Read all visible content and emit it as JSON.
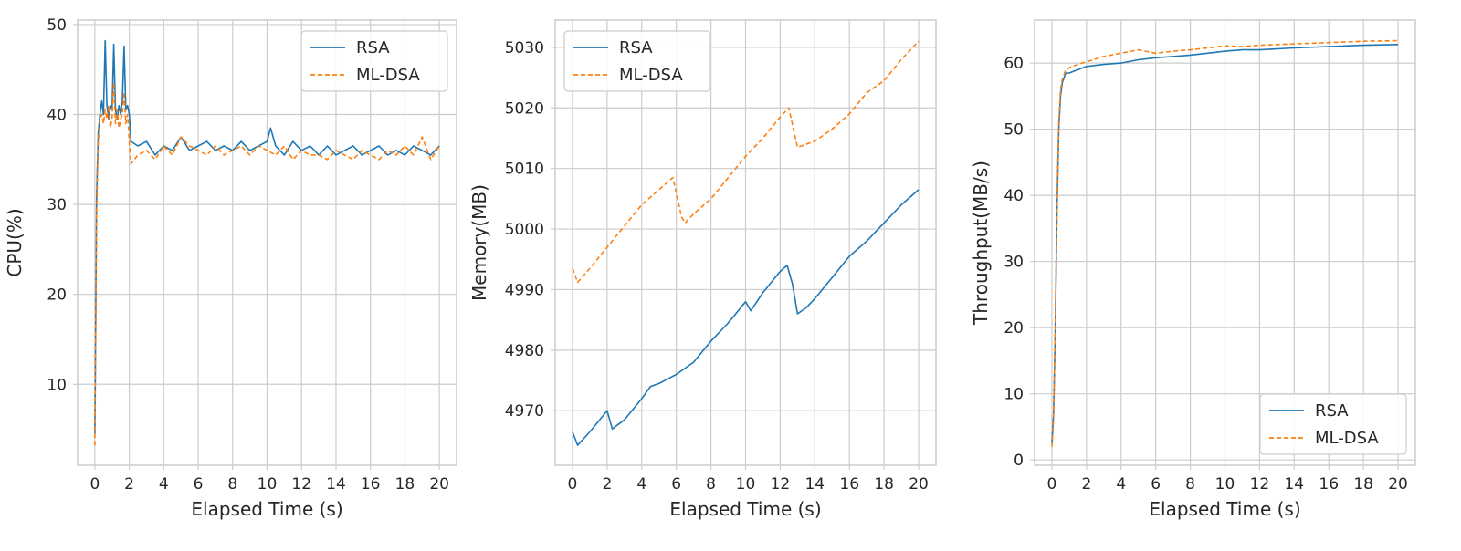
{
  "colors": {
    "rsa": "#1f77b4",
    "mldsa": "#ff7f0e",
    "grid": "#cccccc",
    "background": "#ffffff"
  },
  "chart_data": [
    {
      "type": "line",
      "xlabel": "Elapsed Time (s)",
      "ylabel": "CPU(%)",
      "xlim": [
        -1,
        21
      ],
      "ylim": [
        1,
        50.5
      ],
      "xticks": [
        0,
        2,
        4,
        6,
        8,
        10,
        12,
        14,
        16,
        18,
        20
      ],
      "yticks": [
        10,
        20,
        30,
        40,
        50
      ],
      "grid": true,
      "legend": "top-right",
      "series": [
        {
          "name": "RSA",
          "style": "solid",
          "x": [
            0,
            0.1,
            0.2,
            0.3,
            0.4,
            0.5,
            0.6,
            0.7,
            0.8,
            0.9,
            1.0,
            1.1,
            1.2,
            1.3,
            1.4,
            1.5,
            1.6,
            1.7,
            1.8,
            1.9,
            2.0,
            2.1,
            2.5,
            3.0,
            3.5,
            4.0,
            4.5,
            5.0,
            5.5,
            6.0,
            6.5,
            7.0,
            7.5,
            8.0,
            8.5,
            9.0,
            9.5,
            10.0,
            10.2,
            10.5,
            11.0,
            11.5,
            12.0,
            12.5,
            13.0,
            13.5,
            14.0,
            14.5,
            15.0,
            15.5,
            16.0,
            16.5,
            17.0,
            17.5,
            18.0,
            18.5,
            19.0,
            19.5,
            20.0
          ],
          "y": [
            4.5,
            31,
            38,
            40,
            41.5,
            40,
            48.2,
            41,
            39.5,
            41,
            40.5,
            47.8,
            40.5,
            39.5,
            41,
            40,
            41.5,
            47.6,
            40.5,
            41,
            40,
            37,
            36.5,
            37,
            35.5,
            36.5,
            36,
            37.5,
            36,
            36.5,
            37,
            36,
            36.5,
            36,
            37,
            36,
            36.5,
            37,
            38.5,
            36.5,
            35.5,
            37,
            36,
            36.5,
            35.5,
            36.5,
            35.5,
            36,
            36.5,
            35.5,
            36,
            36.5,
            35.5,
            36,
            35.5,
            36.5,
            36,
            35.5,
            36.5
          ]
        },
        {
          "name": "ML-DSA",
          "style": "dashed",
          "x": [
            0,
            0.1,
            0.2,
            0.3,
            0.4,
            0.5,
            0.6,
            0.7,
            0.8,
            0.9,
            1.0,
            1.1,
            1.2,
            1.3,
            1.4,
            1.5,
            1.6,
            1.7,
            1.8,
            1.9,
            2.0,
            2.1,
            2.5,
            3.0,
            3.5,
            4.0,
            4.5,
            5.0,
            5.5,
            6.0,
            6.5,
            7.0,
            7.5,
            8.0,
            8.5,
            9.0,
            9.5,
            10.0,
            10.5,
            11.0,
            11.5,
            12.0,
            12.5,
            13.0,
            13.5,
            14.0,
            14.5,
            15.0,
            15.5,
            16.0,
            16.5,
            17.0,
            17.5,
            18.0,
            18.5,
            19.0,
            19.5,
            20.0
          ],
          "y": [
            3.2,
            29,
            37,
            39.5,
            40,
            39,
            40.5,
            39.5,
            41,
            38.5,
            39.5,
            43.5,
            39,
            40.5,
            38.5,
            39.5,
            40,
            42.5,
            39,
            40,
            37,
            34.5,
            35.5,
            36,
            35,
            36.5,
            35.5,
            37.5,
            36.5,
            36,
            35.5,
            36.5,
            35.5,
            36,
            36.5,
            35.5,
            36.5,
            36,
            35.5,
            36.5,
            35,
            36,
            35.5,
            35.5,
            35,
            36,
            35.5,
            35,
            36,
            35.5,
            35,
            36,
            35.5,
            36.5,
            35.5,
            37.5,
            35,
            36.5
          ]
        }
      ]
    },
    {
      "type": "line",
      "xlabel": "Elapsed Time (s)",
      "ylabel": "Memory(MB)",
      "xlim": [
        -1,
        21
      ],
      "ylim": [
        4961,
        5034.5
      ],
      "xticks": [
        0,
        2,
        4,
        6,
        8,
        10,
        12,
        14,
        16,
        18,
        20
      ],
      "yticks": [
        4970,
        4980,
        4990,
        5000,
        5010,
        5020,
        5030
      ],
      "grid": true,
      "legend": "top-left",
      "series": [
        {
          "name": "RSA",
          "style": "solid",
          "x": [
            0,
            0.3,
            1.0,
            2.0,
            2.3,
            3.0,
            4.0,
            4.5,
            5.0,
            6.0,
            7.0,
            8.0,
            9.0,
            10.0,
            10.3,
            11.0,
            12.0,
            12.4,
            12.7,
            13.0,
            13.5,
            14.0,
            15.0,
            16.0,
            17.0,
            18.0,
            19.0,
            20.0
          ],
          "y": [
            4966.5,
            4964.3,
            4966.5,
            4970,
            4967,
            4968.5,
            4972,
            4974,
            4974.5,
            4976,
            4978,
            4981.5,
            4984.5,
            4988,
            4986.5,
            4989.5,
            4993,
            4994,
            4991,
            4986,
            4987,
            4988.5,
            4992,
            4995.5,
            4998,
            5001,
            5004,
            5006.5
          ]
        },
        {
          "name": "ML-DSA",
          "style": "dashed",
          "x": [
            0,
            0.3,
            1.0,
            2.0,
            3.0,
            4.0,
            5.0,
            5.8,
            6.3,
            6.5,
            7.0,
            8.0,
            9.0,
            10.0,
            11.0,
            12.0,
            12.5,
            12.8,
            13.0,
            13.5,
            14.0,
            15.0,
            16.0,
            17.0,
            18.0,
            19.0,
            20.0
          ],
          "y": [
            4993.5,
            4991.2,
            4993.5,
            4997,
            5000.5,
            5004,
            5006.5,
            5008.5,
            5002,
            5001,
            5002.5,
            5005,
            5008.5,
            5012,
            5015,
            5018.5,
            5020,
            5016,
            5013.5,
            5014,
            5014.5,
            5016.5,
            5019,
            5022.5,
            5024.5,
            5028,
            5031
          ]
        }
      ]
    },
    {
      "type": "line",
      "xlabel": "Elapsed Time (s)",
      "ylabel": "Throughput(MB/s)",
      "xlim": [
        -1,
        21
      ],
      "ylim": [
        -0.8,
        66.5
      ],
      "xticks": [
        0,
        2,
        4,
        6,
        8,
        10,
        12,
        14,
        16,
        18,
        20
      ],
      "yticks": [
        0,
        10,
        20,
        30,
        40,
        50,
        60
      ],
      "grid": true,
      "legend": "bottom-right",
      "series": [
        {
          "name": "RSA",
          "style": "solid",
          "x": [
            0,
            0.1,
            0.2,
            0.3,
            0.4,
            0.5,
            0.6,
            0.8,
            1.0,
            1.5,
            2.0,
            3.0,
            4.0,
            5.0,
            6.0,
            7.0,
            8.0,
            9.0,
            10.0,
            11.0,
            12.0,
            14.0,
            16.0,
            18.0,
            20.0
          ],
          "y": [
            2.5,
            7,
            20,
            38,
            50,
            55,
            57,
            58.5,
            58.5,
            59,
            59.5,
            59.8,
            60,
            60.5,
            60.8,
            61,
            61.2,
            61.5,
            61.8,
            62,
            62,
            62.3,
            62.5,
            62.7,
            62.8
          ]
        },
        {
          "name": "ML-DSA",
          "style": "dashed",
          "x": [
            0,
            0.1,
            0.2,
            0.3,
            0.4,
            0.5,
            0.6,
            0.8,
            1.0,
            1.5,
            2.0,
            3.0,
            4.0,
            5.0,
            6.0,
            7.0,
            8.0,
            9.0,
            10.0,
            11.0,
            12.0,
            14.0,
            16.0,
            18.0,
            20.0
          ],
          "y": [
            2.0,
            6,
            21,
            40,
            51,
            56,
            57.5,
            59,
            59.3,
            59.8,
            60.2,
            61,
            61.5,
            62,
            61.5,
            61.8,
            62,
            62.3,
            62.6,
            62.5,
            62.7,
            62.9,
            63.1,
            63.3,
            63.4
          ]
        }
      ]
    }
  ]
}
